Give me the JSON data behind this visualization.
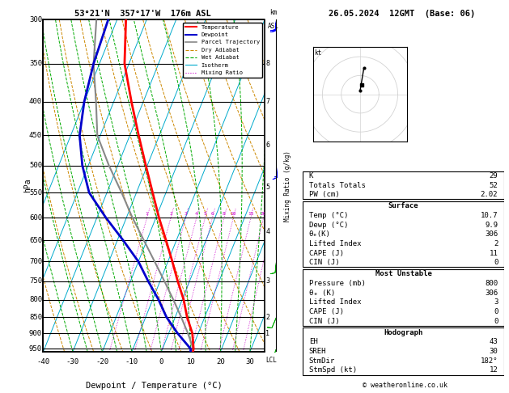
{
  "title_left": "53°21'N  357°17'W  176m ASL",
  "title_right": "26.05.2024  12GMT  (Base: 06)",
  "xlabel": "Dewpoint / Temperature (°C)",
  "ylabel_left": "hPa",
  "pressure_levels": [
    300,
    350,
    400,
    450,
    500,
    550,
    600,
    650,
    700,
    750,
    800,
    850,
    900,
    950
  ],
  "pressure_min": 300,
  "pressure_max": 960,
  "temp_min": -40,
  "temp_max": 35,
  "skew_factor": 45.0,
  "temp_profile_p": [
    960,
    950,
    900,
    850,
    800,
    750,
    700,
    650,
    600,
    550,
    500,
    450,
    400,
    350,
    300
  ],
  "temp_profile_t": [
    10.7,
    10.5,
    8.0,
    4.0,
    0.5,
    -4.0,
    -8.5,
    -13.5,
    -19.0,
    -24.5,
    -30.5,
    -37.0,
    -44.0,
    -51.5,
    -57.0
  ],
  "dewp_profile_p": [
    960,
    950,
    900,
    850,
    800,
    750,
    700,
    650,
    600,
    550,
    500,
    450,
    400,
    350,
    300
  ],
  "dewp_profile_t": [
    9.9,
    9.5,
    3.0,
    -3.0,
    -8.0,
    -14.0,
    -20.0,
    -28.0,
    -37.0,
    -46.0,
    -52.0,
    -57.0,
    -60.0,
    -62.0,
    -63.0
  ],
  "parcel_profile_p": [
    960,
    950,
    900,
    850,
    800,
    750,
    700,
    650,
    600,
    550,
    500,
    450,
    400,
    350,
    300
  ],
  "parcel_profile_t": [
    10.7,
    10.4,
    6.5,
    2.0,
    -3.0,
    -8.5,
    -14.5,
    -21.0,
    -28.0,
    -35.0,
    -43.0,
    -51.0,
    -56.0,
    -62.0,
    -67.0
  ],
  "km_ticks": [
    1,
    2,
    3,
    4,
    5,
    6,
    7,
    8
  ],
  "km_pressures": [
    900,
    850,
    750,
    630,
    540,
    465,
    400,
    350
  ],
  "lcl_pressure": 958,
  "mixing_ratios": [
    1,
    2,
    3,
    4,
    5,
    6,
    8,
    10,
    15,
    20,
    25
  ],
  "mixing_ratio_label_p": 600,
  "color_temp": "#ff0000",
  "color_dewp": "#0000cc",
  "color_parcel": "#888888",
  "color_dry_adiabat": "#cc8800",
  "color_wet_adiabat": "#00aa00",
  "color_isotherm": "#00aacc",
  "color_mixing": "#cc00cc",
  "bg_color": "#ffffff",
  "stats": {
    "K": 29,
    "Totals_Totals": 52,
    "PW_cm": "2.02",
    "Surface_Temp": "10.7",
    "Surface_Dewp": "9.9",
    "Surface_theta_e": 306,
    "Surface_LI": 2,
    "Surface_CAPE": 11,
    "Surface_CIN": 0,
    "MU_Pressure": 800,
    "MU_theta_e": 306,
    "MU_LI": 3,
    "MU_CAPE": 0,
    "MU_CIN": 0,
    "EH": 43,
    "SREH": 30,
    "StmDir": "182°",
    "StmSpd_kt": 12
  },
  "wind_barbs": [
    {
      "p": 950,
      "u": 2,
      "v": 5,
      "color": "#00aa00"
    },
    {
      "p": 850,
      "u": 3,
      "v": 7,
      "color": "#00aa00"
    },
    {
      "p": 700,
      "u": 1,
      "v": 9,
      "color": "#00aa00"
    },
    {
      "p": 500,
      "u": -1,
      "v": 13,
      "color": "#0000ff"
    },
    {
      "p": 300,
      "u": 2,
      "v": 18,
      "color": "#0000ff"
    }
  ],
  "copyright": "© weatheronline.co.uk"
}
